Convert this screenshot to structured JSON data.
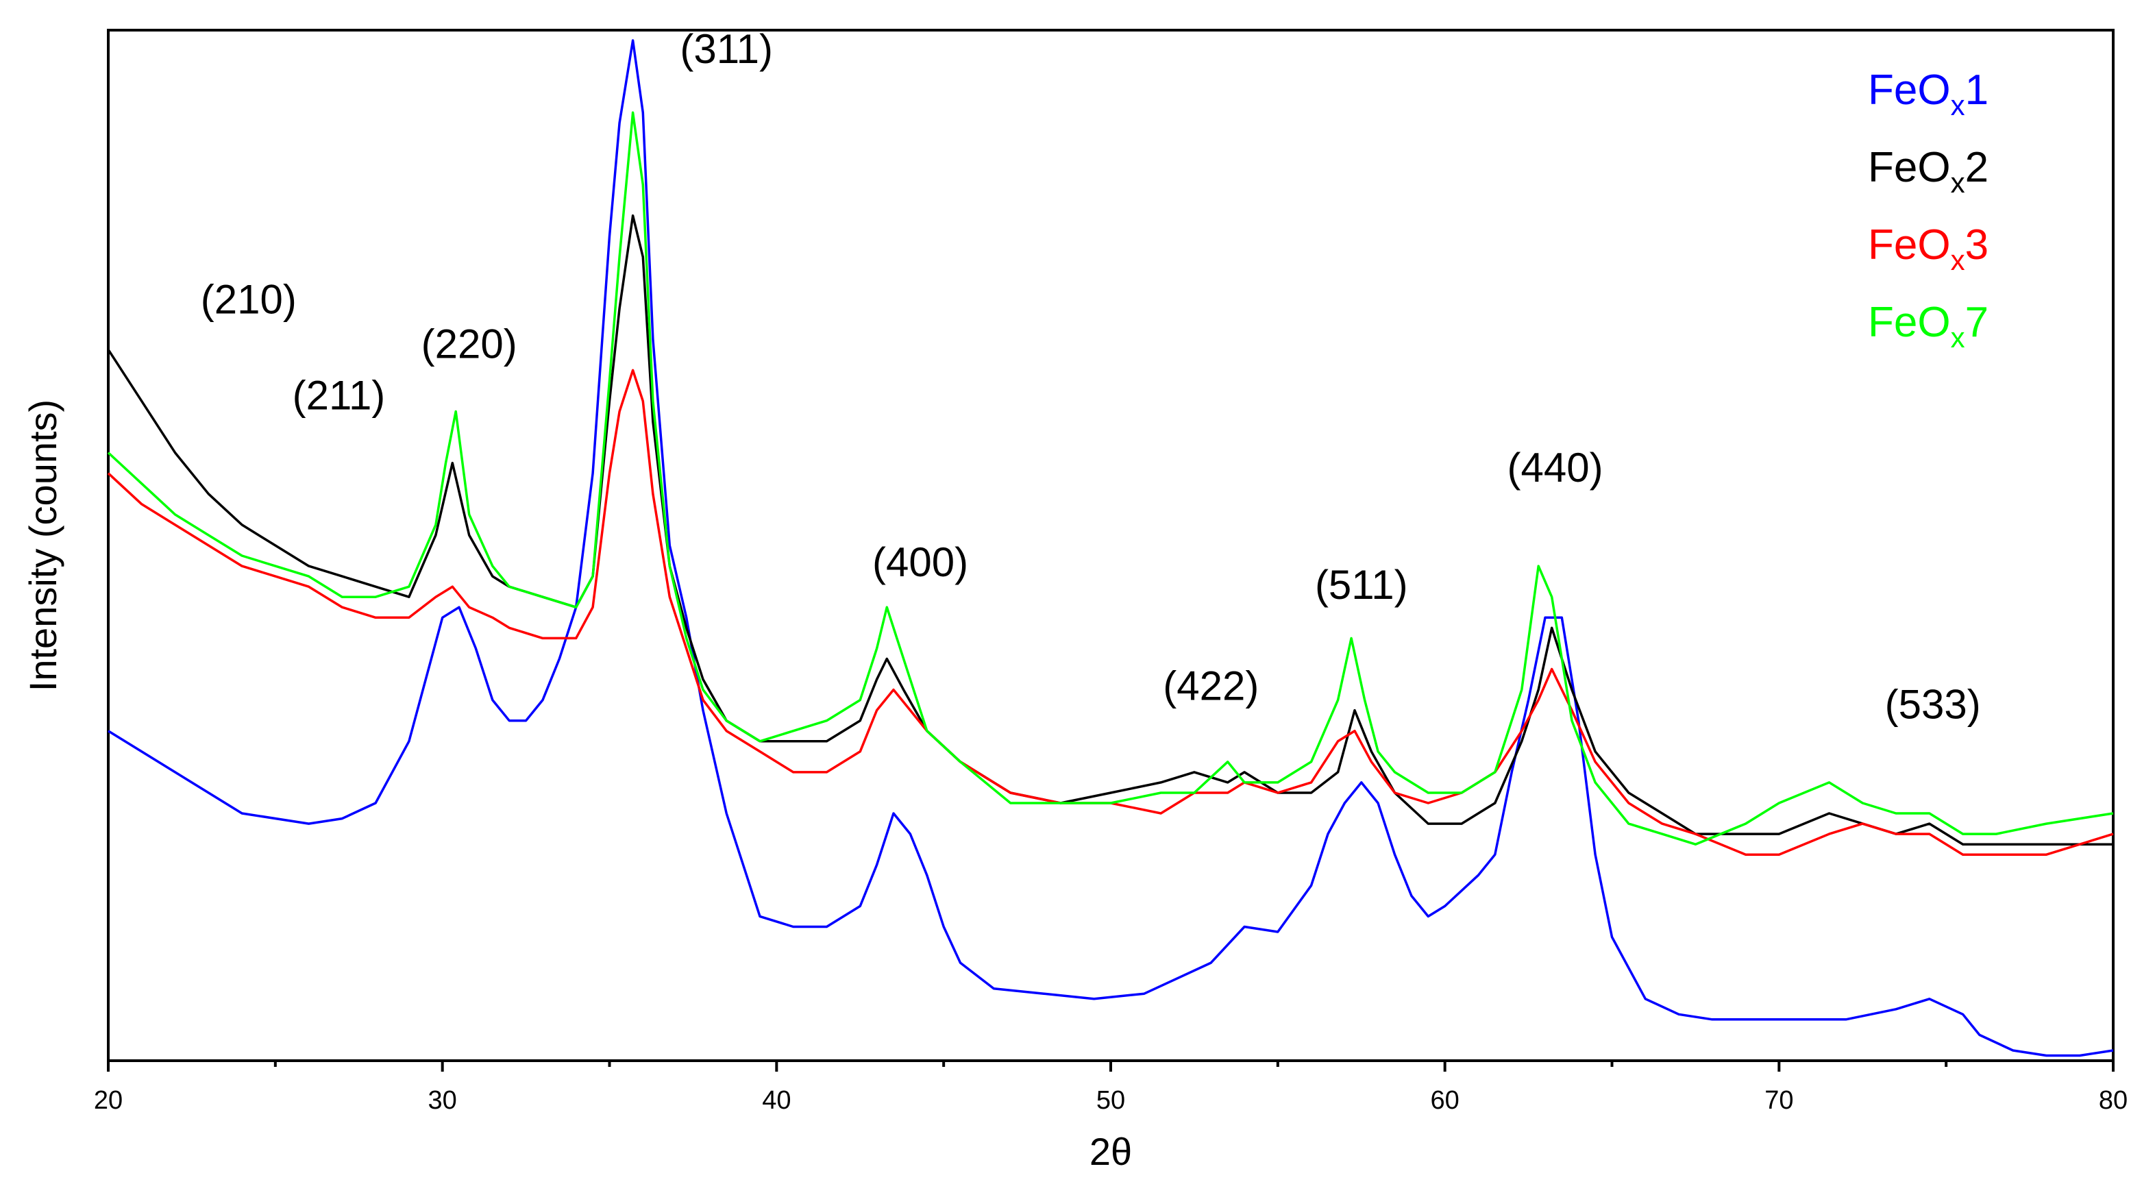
{
  "chart_data": {
    "type": "line",
    "xlabel": "2θ",
    "ylabel": "Intensity (counts)",
    "xlim": [
      20,
      80
    ],
    "ylim": [
      0,
      100
    ],
    "x_ticks": [
      20,
      30,
      40,
      50,
      60,
      70,
      80
    ],
    "grid": false,
    "legend_placement": "top-right",
    "peak_labels": [
      {
        "text": "(210)",
        "x": 24.2,
        "y": 72.5
      },
      {
        "text": "(211)",
        "x": 26.9,
        "y": 63.2
      },
      {
        "text": "(220)",
        "x": 30.8,
        "y": 68.2
      },
      {
        "text": "(311)",
        "x": 38.5,
        "y": 96.8
      },
      {
        "text": "(400)",
        "x": 44.3,
        "y": 47.0
      },
      {
        "text": "(422)",
        "x": 53.0,
        "y": 35.0
      },
      {
        "text": "(511)",
        "x": 57.5,
        "y": 44.8
      },
      {
        "text": "(440)",
        "x": 63.3,
        "y": 56.2
      },
      {
        "text": "(533)",
        "x": 74.6,
        "y": 33.2
      }
    ],
    "series": [
      {
        "name": "FeOx1",
        "legend_main": "FeO",
        "legend_sub": "x",
        "legend_suffix": "1",
        "color": "#0000ff",
        "x": [
          20,
          22,
          24,
          26,
          27,
          28,
          29,
          29.5,
          30,
          30.5,
          31,
          31.5,
          32,
          32.5,
          33,
          33.5,
          34,
          34.5,
          35,
          35.3,
          35.7,
          36.0,
          36.3,
          36.8,
          37.3,
          37.8,
          38.5,
          39.5,
          40.5,
          41.5,
          42.5,
          43.0,
          43.5,
          44.0,
          44.5,
          45.0,
          45.5,
          46.5,
          48,
          49.5,
          51,
          52,
          53,
          54,
          55,
          56,
          56.5,
          57,
          57.5,
          58,
          58.5,
          59,
          59.5,
          60,
          61,
          61.5,
          62,
          62.5,
          63,
          63.5,
          64,
          64.5,
          65,
          66,
          67,
          68,
          70,
          72,
          73.5,
          74.5,
          75.5,
          76,
          77,
          78,
          79,
          80
        ],
        "y": [
          32,
          28,
          24,
          23,
          23.5,
          25,
          31,
          37,
          43,
          44,
          40,
          35,
          33,
          33,
          35,
          39,
          44,
          57,
          80,
          91,
          99,
          92,
          70,
          50,
          43,
          34,
          24,
          14,
          13,
          13,
          15,
          19,
          24,
          22,
          18,
          13,
          9.5,
          7,
          6.5,
          6,
          6.5,
          8,
          9.5,
          13,
          12.5,
          17,
          22,
          25,
          27,
          25,
          20,
          16,
          14,
          15,
          18,
          20,
          28,
          35,
          43,
          43,
          33,
          20,
          12,
          6,
          4.5,
          4,
          4,
          4,
          5,
          6,
          4.5,
          2.5,
          1,
          0.5,
          0.5,
          1
        ]
      },
      {
        "name": "FeOx2",
        "legend_main": "FeO",
        "legend_sub": "x",
        "legend_suffix": "2",
        "color": "#000000",
        "x": [
          20,
          21,
          22,
          23,
          24,
          25,
          26,
          27,
          28,
          29,
          29.8,
          30.3,
          30.8,
          31.5,
          32,
          33,
          34,
          34.5,
          35,
          35.3,
          35.7,
          36.0,
          36.3,
          36.8,
          37.3,
          37.8,
          38.5,
          39.5,
          40.5,
          41.5,
          42.5,
          43.0,
          43.3,
          43.8,
          44.5,
          45.5,
          47,
          48.5,
          50,
          51.5,
          52.5,
          53.5,
          54,
          55,
          56,
          56.8,
          57.3,
          57.8,
          58.5,
          59.5,
          60.5,
          61.5,
          62.3,
          62.8,
          63.2,
          63.8,
          64.5,
          65.5,
          66.5,
          67.5,
          69,
          70,
          71.5,
          72.5,
          73.5,
          74.5,
          75.5,
          76.5,
          78,
          80
        ],
        "y": [
          69,
          64,
          59,
          55,
          52,
          50,
          48,
          47,
          46,
          45,
          51,
          58,
          51,
          47,
          46,
          45,
          44,
          47,
          64,
          73,
          82,
          78,
          62,
          48,
          42,
          37,
          33,
          31,
          31,
          31,
          33,
          37,
          39,
          36,
          32,
          29,
          26,
          25,
          26,
          27,
          28,
          27,
          28,
          26,
          26,
          28,
          34,
          30,
          26,
          23,
          23,
          25,
          31,
          36,
          42,
          36,
          30,
          26,
          24,
          22,
          22,
          22,
          24,
          23,
          22,
          23,
          21,
          21,
          21,
          21
        ]
      },
      {
        "name": "FeOx3",
        "legend_main": "FeO",
        "legend_sub": "x",
        "legend_suffix": "3",
        "color": "#ff0000",
        "x": [
          20,
          21,
          22,
          23,
          24,
          25,
          26,
          27,
          28,
          29,
          29.8,
          30.3,
          30.8,
          31.5,
          32,
          33,
          34,
          34.5,
          35,
          35.3,
          35.7,
          36.0,
          36.3,
          36.8,
          37.3,
          37.8,
          38.5,
          39.5,
          40.5,
          41.5,
          42.5,
          43.0,
          43.5,
          44.0,
          44.5,
          45.5,
          47,
          48.5,
          50,
          51.5,
          52.5,
          53.5,
          54,
          55,
          56,
          56.8,
          57.3,
          57.8,
          58.5,
          59.5,
          60.5,
          61.5,
          62.3,
          62.8,
          63.2,
          63.8,
          64.5,
          65.5,
          66.5,
          67.5,
          69,
          70,
          71.5,
          72.5,
          73.5,
          74.5,
          75.5,
          76.5,
          78,
          80
        ],
        "y": [
          57,
          54,
          52,
          50,
          48,
          47,
          46,
          44,
          43,
          43,
          45,
          46,
          44,
          43,
          42,
          41,
          41,
          44,
          57,
          63,
          67,
          64,
          55,
          45,
          40,
          35,
          32,
          30,
          28,
          28,
          30,
          34,
          36,
          34,
          32,
          29,
          26,
          25,
          25,
          24,
          26,
          26,
          27,
          26,
          27,
          31,
          32,
          29,
          26,
          25,
          26,
          28,
          32,
          35,
          38,
          34,
          29,
          25,
          23,
          22,
          20,
          20,
          22,
          23,
          22,
          22,
          20,
          20,
          20,
          22
        ]
      },
      {
        "name": "FeOx7",
        "legend_main": "FeO",
        "legend_sub": "x",
        "legend_suffix": "7",
        "color": "#00ff00",
        "x": [
          20,
          21,
          22,
          23,
          24,
          25,
          26,
          27,
          28,
          29,
          29.8,
          30.1,
          30.4,
          30.8,
          31.5,
          32,
          33,
          34,
          34.5,
          35,
          35.3,
          35.7,
          36.0,
          36.3,
          36.8,
          37.3,
          37.8,
          38.5,
          39.5,
          40.5,
          41.5,
          42.5,
          43.0,
          43.3,
          43.6,
          44.0,
          44.5,
          45.5,
          47,
          48.5,
          50,
          51.5,
          52.5,
          53.5,
          54,
          55,
          56,
          56.8,
          57.2,
          57.6,
          58.0,
          58.5,
          59.5,
          60.5,
          61.5,
          62.3,
          62.8,
          63.2,
          63.8,
          64.5,
          65.5,
          66.5,
          67.5,
          69,
          70,
          71.5,
          72.5,
          73.5,
          74.5,
          75.5,
          76.5,
          78,
          80
        ],
        "y": [
          59,
          56,
          53,
          51,
          49,
          48,
          47,
          45,
          45,
          46,
          52,
          58,
          63,
          53,
          48,
          46,
          45,
          44,
          47,
          66,
          78,
          92,
          85,
          64,
          48,
          41,
          36,
          33,
          31,
          32,
          33,
          35,
          40,
          44,
          41,
          37,
          32,
          29,
          25,
          25,
          25,
          26,
          26,
          29,
          27,
          27,
          29,
          35,
          41,
          35,
          30,
          28,
          26,
          26,
          28,
          36,
          48,
          45,
          33,
          27,
          23,
          22,
          21,
          23,
          25,
          27,
          25,
          24,
          24,
          22,
          22,
          23,
          24
        ]
      }
    ]
  }
}
